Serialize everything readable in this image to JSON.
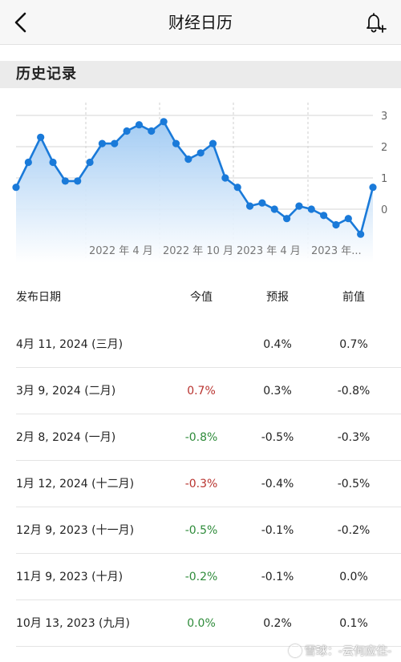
{
  "nav": {
    "title": "财经日历"
  },
  "section": {
    "title": "历史记录"
  },
  "chart_data": {
    "type": "area",
    "y_ticks": [
      "3",
      "2",
      "1",
      "0"
    ],
    "ylim": [
      -0.8,
      3.2
    ],
    "x_tick_labels": [
      "2022 年 4 月",
      "2022 年 10 月",
      "2023 年 4 月",
      "2023 年..."
    ],
    "grid": true,
    "values": [
      0.7,
      1.5,
      2.3,
      1.5,
      0.9,
      0.9,
      1.5,
      2.1,
      2.1,
      2.5,
      2.7,
      2.5,
      2.8,
      2.1,
      1.6,
      1.8,
      2.1,
      1.0,
      0.7,
      0.1,
      0.2,
      0.0,
      -0.3,
      0.1,
      0.0,
      -0.2,
      -0.5,
      -0.3,
      -0.8,
      0.7
    ],
    "line_color": "#1a7ad9",
    "fill_color": "#bcd9f6"
  },
  "table": {
    "headers": {
      "date": "发布日期",
      "actual": "今值",
      "forecast": "预报",
      "previous": "前值"
    },
    "rows": [
      {
        "date": "4月 11, 2024 (三月)",
        "actual": "",
        "forecast": "0.4%",
        "previous": "0.7%",
        "actual_color": ""
      },
      {
        "date": "3月 9, 2024 (二月)",
        "actual": "0.7%",
        "forecast": "0.3%",
        "previous": "-0.8%",
        "actual_color": "red"
      },
      {
        "date": "2月 8, 2024 (一月)",
        "actual": "-0.8%",
        "forecast": "-0.5%",
        "previous": "-0.3%",
        "actual_color": "green"
      },
      {
        "date": "1月 12, 2024 (十二月)",
        "actual": "-0.3%",
        "forecast": "-0.4%",
        "previous": "-0.5%",
        "actual_color": "red"
      },
      {
        "date": "12月 9, 2023 (十一月)",
        "actual": "-0.5%",
        "forecast": "-0.1%",
        "previous": "-0.2%",
        "actual_color": "green"
      },
      {
        "date": "11月 9, 2023 (十月)",
        "actual": "-0.2%",
        "forecast": "-0.1%",
        "previous": "0.0%",
        "actual_color": "green"
      },
      {
        "date": "10月 13, 2023 (九月)",
        "actual": "0.0%",
        "forecast": "0.2%",
        "previous": "0.1%",
        "actual_color": "green"
      }
    ]
  },
  "watermark": {
    "text": "雪球：-云何应住-"
  },
  "icons": {
    "back": "chevron-left-icon",
    "bell": "bell-plus-icon"
  }
}
